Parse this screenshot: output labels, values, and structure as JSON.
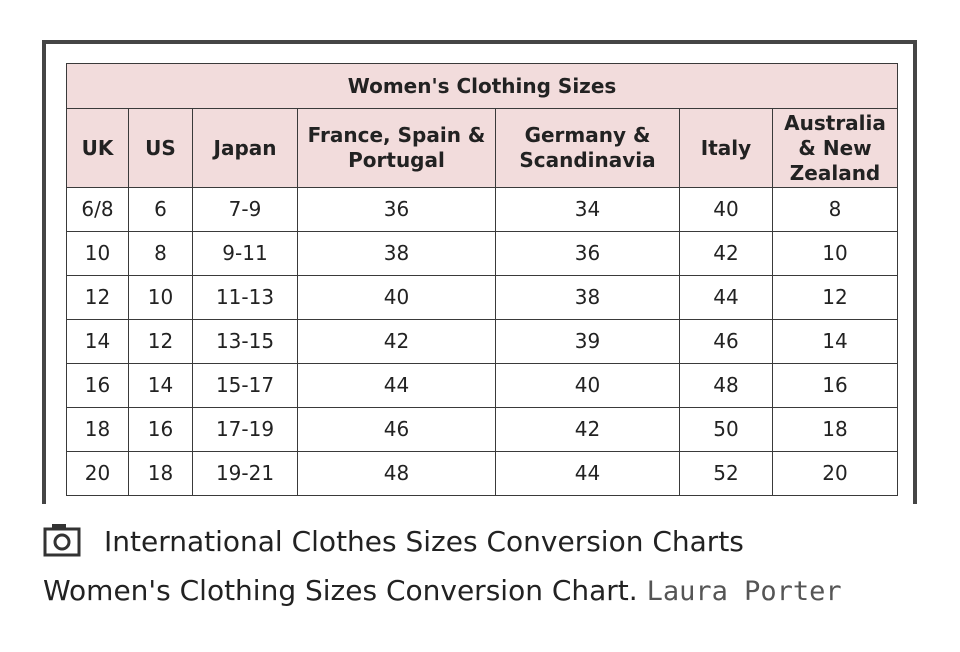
{
  "table": {
    "title": "Women's Clothing Sizes",
    "headers": [
      "UK",
      "US",
      "Japan",
      "France, Spain & Portugal",
      "Germany & Scandinavia",
      "Italy",
      "Australia & New Zealand"
    ],
    "rows": [
      [
        "6/8",
        "6",
        "7-9",
        "36",
        "34",
        "40",
        "8"
      ],
      [
        "10",
        "8",
        "9-11",
        "38",
        "36",
        "42",
        "10"
      ],
      [
        "12",
        "10",
        "11-13",
        "40",
        "38",
        "44",
        "12"
      ],
      [
        "14",
        "12",
        "13-15",
        "42",
        "39",
        "46",
        "14"
      ],
      [
        "16",
        "14",
        "15-17",
        "44",
        "40",
        "48",
        "16"
      ],
      [
        "18",
        "16",
        "17-19",
        "46",
        "42",
        "50",
        "18"
      ],
      [
        "20",
        "18",
        "19-21",
        "48",
        "44",
        "52",
        "20"
      ]
    ]
  },
  "caption": {
    "title": "International Clothes Sizes Conversion Charts",
    "text": "Women's Clothing Sizes Conversion Chart.",
    "credit": "Laura Porter"
  }
}
